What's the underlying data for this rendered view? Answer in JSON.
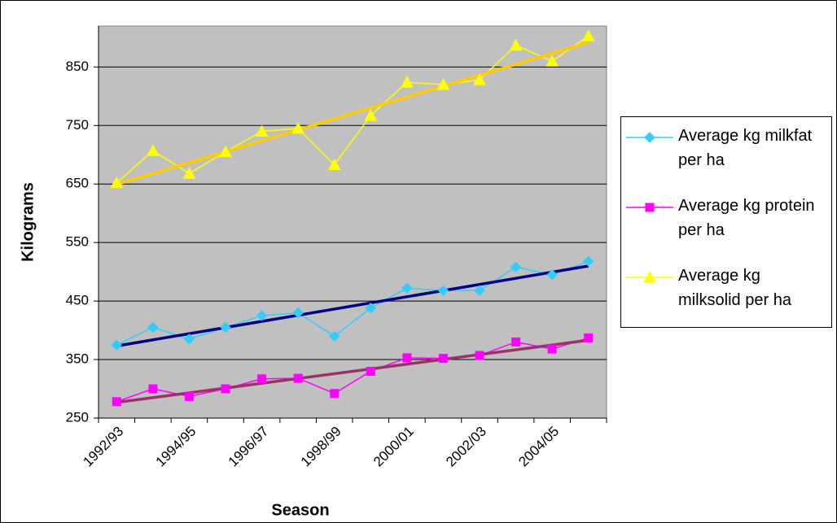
{
  "chart_data": {
    "type": "line",
    "x_label": "Season",
    "y_label": "Kilograms",
    "categories": [
      "1992/93",
      null,
      "1994/95",
      null,
      "1996/97",
      null,
      "1998/99",
      null,
      "2000/01",
      null,
      "2002/03",
      null,
      "2004/05",
      null
    ],
    "series": [
      {
        "name": "Average kg milkfat per ha",
        "color": "#33ccff",
        "marker": "diamond",
        "trendline_color": "#000080",
        "values": [
          375,
          405,
          385,
          405,
          425,
          430,
          390,
          438,
          472,
          468,
          468,
          508,
          495,
          518
        ]
      },
      {
        "name": "Average kg protein per ha",
        "color": "#ff00ff",
        "marker": "square",
        "trendline_color": "#993366",
        "values": [
          278,
          300,
          287,
          300,
          317,
          318,
          292,
          330,
          353,
          352,
          357,
          380,
          368,
          387
        ]
      },
      {
        "name": "Average kg milksolid per ha",
        "color": "#ffff00",
        "marker": "triangle",
        "trendline_color": "#ffcc00",
        "values": [
          652,
          707,
          668,
          705,
          740,
          745,
          683,
          767,
          824,
          820,
          828,
          887,
          860,
          903
        ]
      }
    ],
    "ylim": [
      250,
      920
    ],
    "yticks": [
      250,
      350,
      450,
      550,
      650,
      750,
      850
    ],
    "grid": true,
    "plot_background": "#c0c0c0",
    "legend": "right"
  }
}
